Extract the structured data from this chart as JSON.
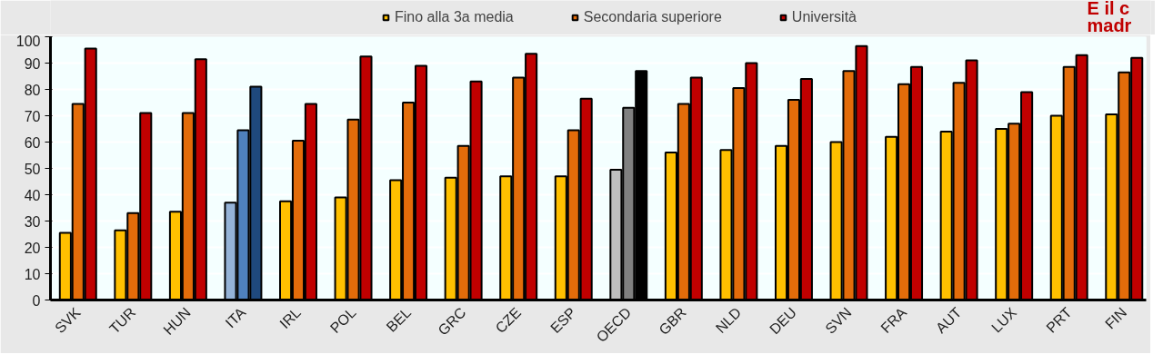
{
  "chart_data": {
    "type": "bar",
    "categories": [
      "SVK",
      "TUR",
      "HUN",
      "ITA",
      "IRL",
      "POL",
      "BEL",
      "GRC",
      "CZE",
      "ESP",
      "OECD",
      "GBR",
      "NLD",
      "DEU",
      "SVN",
      "FRA",
      "AUT",
      "LUX",
      "PRT",
      "FIN"
    ],
    "series": [
      {
        "name": "Fino alla 3a media",
        "color": "#ffc000",
        "colors": [
          "#ffc000",
          "#ffc000",
          "#ffc000",
          "#95b3d7",
          "#ffc000",
          "#ffc000",
          "#ffc000",
          "#ffc000",
          "#ffc000",
          "#ffc000",
          "#bfbfbf",
          "#ffc000",
          "#ffc000",
          "#ffc000",
          "#ffc000",
          "#ffc000",
          "#ffc000",
          "#ffc000",
          "#ffc000",
          "#ffc000"
        ],
        "values": [
          25.5,
          26.5,
          33.5,
          37,
          37.5,
          39,
          45.5,
          46.5,
          47,
          47,
          49.5,
          56,
          57,
          58.5,
          60,
          62,
          64,
          65,
          70,
          70.5
        ]
      },
      {
        "name": "Secondaria superiore",
        "color": "#e36c0a",
        "colors": [
          "#e36c0a",
          "#e36c0a",
          "#e36c0a",
          "#4f81bd",
          "#e36c0a",
          "#e36c0a",
          "#e36c0a",
          "#e36c0a",
          "#e36c0a",
          "#e36c0a",
          "#808080",
          "#e36c0a",
          "#e36c0a",
          "#e36c0a",
          "#e36c0a",
          "#e36c0a",
          "#e36c0a",
          "#e36c0a",
          "#e36c0a",
          "#e36c0a"
        ],
        "values": [
          74.5,
          33,
          71,
          64.5,
          60.5,
          68.5,
          75,
          58.5,
          84.5,
          64.5,
          73,
          74.5,
          80.5,
          76,
          87,
          82,
          82.5,
          67,
          88.5,
          86.5
        ]
      },
      {
        "name": "Università",
        "color": "#c00000",
        "colors": [
          "#c00000",
          "#c00000",
          "#c00000",
          "#1f497d",
          "#c00000",
          "#c00000",
          "#c00000",
          "#c00000",
          "#c00000",
          "#c00000",
          "#000000",
          "#c00000",
          "#c00000",
          "#c00000",
          "#c00000",
          "#c00000",
          "#c00000",
          "#c00000",
          "#c00000",
          "#c00000"
        ],
        "values": [
          95.5,
          71,
          91.5,
          81,
          74.5,
          92.5,
          89,
          83,
          93.5,
          76.5,
          87,
          84.5,
          90,
          84,
          96.5,
          88.5,
          91,
          79,
          93,
          92
        ]
      }
    ],
    "ylim": [
      0,
      100
    ],
    "yticks": [
      0,
      10,
      20,
      30,
      40,
      50,
      60,
      70,
      80,
      90,
      100
    ],
    "grid": "y",
    "legend": "top",
    "annotations": [
      "E il c",
      "madr"
    ]
  }
}
